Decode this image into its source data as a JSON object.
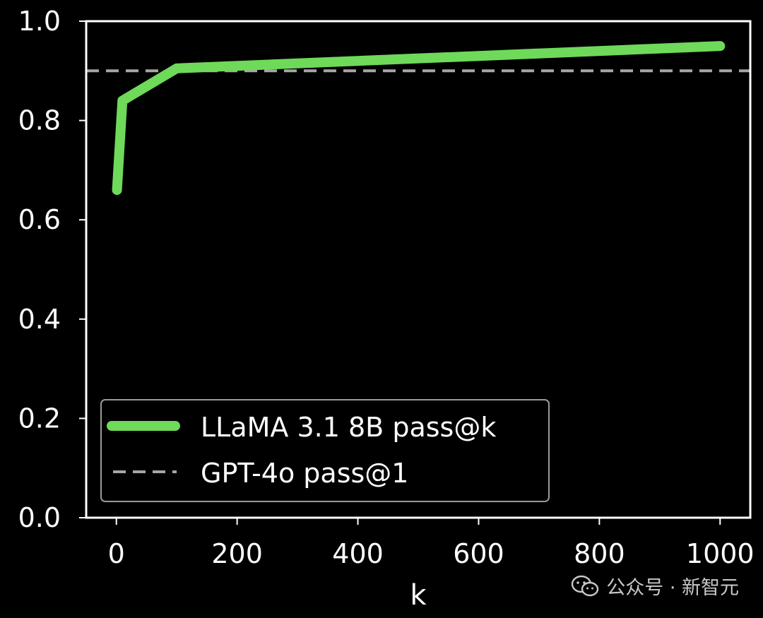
{
  "chart_data": {
    "type": "line",
    "xlabel": "k",
    "ylabel": "",
    "xlim": [
      -50,
      1050
    ],
    "ylim": [
      0.0,
      1.0
    ],
    "x_ticks": [
      0,
      200,
      400,
      600,
      800,
      1000
    ],
    "x_tick_labels": [
      "0",
      "200",
      "400",
      "600",
      "800",
      "1000"
    ],
    "y_ticks": [
      0.0,
      0.2,
      0.4,
      0.6,
      0.8,
      1.0
    ],
    "y_tick_labels": [
      "0.0",
      "0.2",
      "0.4",
      "0.6",
      "0.8",
      "1.0"
    ],
    "grid": false,
    "legend_position": "lower-left",
    "series": [
      {
        "name": "LLaMA 3.1 8B pass@k",
        "color": "#6fd95a",
        "style": "solid",
        "x": [
          1,
          10,
          100,
          1000
        ],
        "y": [
          0.66,
          0.84,
          0.905,
          0.95
        ]
      },
      {
        "name": "GPT-4o pass@1",
        "color": "#a6a6a6",
        "style": "dashed",
        "y_constant": 0.9
      }
    ]
  },
  "watermark": {
    "icon": "wechat-icon",
    "text": "公众号 · 新智元"
  }
}
